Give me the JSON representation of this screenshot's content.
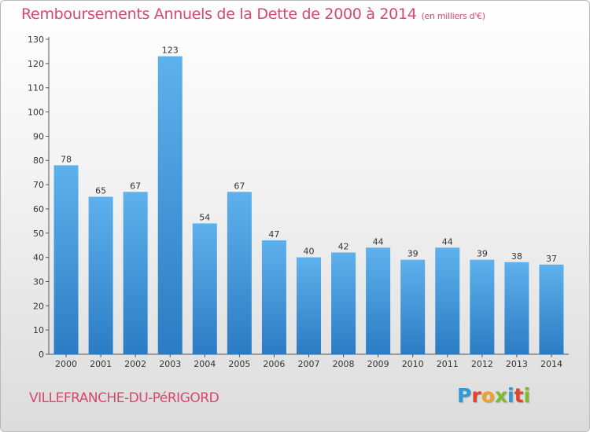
{
  "title_main": "Remboursements Annuels de la Dette de 2000 à 2014",
  "title_unit": "(en milliers d'€)",
  "commune": "VILLEFRANCHE-DU-PéRIGORD",
  "logo": {
    "letters": [
      "P",
      "r",
      "o",
      "x",
      "i",
      "t",
      "i"
    ],
    "colors": [
      "#2e9ad6",
      "#e0452c",
      "#f2a126",
      "#7cbd2a",
      "#2e9ad6",
      "#e0452c",
      "#7cbd2a"
    ]
  },
  "chart_data": {
    "type": "bar",
    "categories": [
      "2000",
      "2001",
      "2002",
      "2003",
      "2004",
      "2005",
      "2006",
      "2007",
      "2008",
      "2009",
      "2010",
      "2011",
      "2012",
      "2013",
      "2014"
    ],
    "values": [
      78,
      65,
      67,
      123,
      54,
      67,
      47,
      40,
      42,
      44,
      39,
      44,
      39,
      38,
      37
    ],
    "ylim": [
      0,
      130
    ],
    "yticks": [
      0,
      10,
      20,
      30,
      40,
      50,
      60,
      70,
      80,
      90,
      100,
      110,
      120,
      130
    ],
    "grid": false,
    "bar_color": "#3a8fd6"
  }
}
